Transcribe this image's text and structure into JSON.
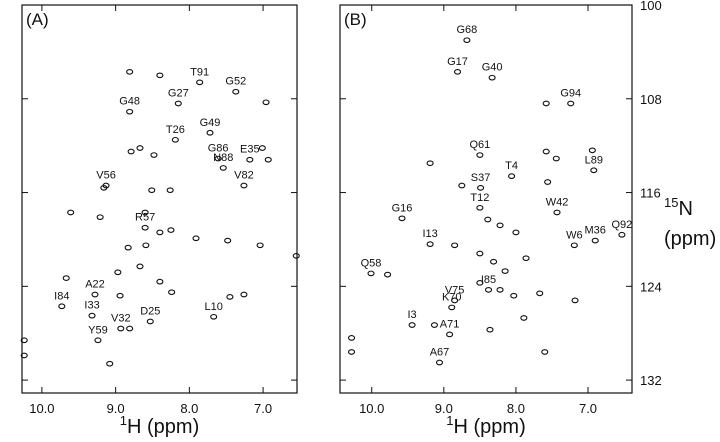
{
  "chart_data": [
    {
      "type": "scatter",
      "panel_label": "(A)",
      "color": "#111111",
      "x_label_isotope": "1",
      "x_label": "H (ppm)",
      "xlim": [
        10.27,
        6.54
      ],
      "ylim": [
        100,
        133.1
      ],
      "xticks": [
        {
          "value": 10,
          "label": "10.0"
        },
        {
          "value": 9,
          "label": "9.0"
        },
        {
          "value": 8,
          "label": "8.0"
        },
        {
          "value": 7,
          "label": "7.0"
        }
      ],
      "x": [
        7.86,
        7.37,
        8.15,
        8.81,
        8.19,
        7.72,
        7.61,
        7.54,
        7.18,
        9.13,
        7.26,
        8.6,
        9.28,
        9.73,
        9.32,
        8.53,
        8.93,
        7.67,
        9.24,
        8.81,
        8.4,
        6.96,
        8.67,
        8.48,
        8.79,
        9.16,
        8.51,
        8.26,
        9.61,
        8.6,
        9.21,
        8.4,
        8.59,
        8.25,
        8.83,
        7.91,
        7.48,
        7.04,
        6.55,
        9.67,
        8.97,
        8.67,
        8.4,
        8.24,
        7.45,
        7.26,
        8.94,
        8.81,
        9.08,
        10.24,
        10.24,
        6.93,
        7.01
      ],
      "values": [
        106.6,
        107.4,
        108.4,
        109.1,
        111.5,
        110.9,
        113.1,
        113.9,
        113.2,
        115.4,
        115.4,
        119.0,
        124.7,
        125.7,
        126.5,
        127.0,
        127.6,
        126.6,
        128.6,
        105.7,
        106.0,
        108.3,
        112.2,
        112.8,
        112.5,
        115.6,
        115.8,
        115.8,
        117.7,
        117.7,
        118.1,
        119.4,
        120.5,
        119.2,
        120.7,
        119.9,
        120.1,
        120.5,
        121.4,
        123.3,
        122.8,
        122.3,
        123.6,
        124.5,
        124.9,
        124.7,
        124.8,
        127.6,
        130.6,
        128.6,
        129.9,
        113.2,
        112.2
      ],
      "labels": [
        "T91",
        "G52",
        "G27",
        "G48",
        "T26",
        "G49",
        "G86",
        "N88",
        "E35",
        "V56",
        "V82",
        "R57",
        "A22",
        "I84",
        "I33",
        "D25",
        "V32",
        "L10",
        "Y59",
        null,
        null,
        null,
        null,
        null,
        null,
        null,
        null,
        null,
        null,
        null,
        null,
        null,
        null,
        null,
        null,
        null,
        null,
        null,
        null,
        null,
        null,
        null,
        null,
        null,
        null,
        null,
        null,
        null,
        null,
        null,
        null,
        null,
        null
      ]
    },
    {
      "type": "scatter",
      "panel_label": "(B)",
      "color": "#111111",
      "x_label_isotope": "1",
      "x_label": "H (ppm)",
      "y_label_isotope": "15",
      "y_label": "N",
      "y_label_unit": "(ppm)",
      "xlim": [
        10.44,
        6.39
      ],
      "ylim": [
        100,
        133.1
      ],
      "xticks": [
        {
          "value": 10,
          "label": "10.0"
        },
        {
          "value": 9,
          "label": "9.0"
        },
        {
          "value": 8,
          "label": "8.0"
        },
        {
          "value": 7,
          "label": "7.0"
        }
      ],
      "yticks": [
        100,
        108,
        116,
        124,
        132
      ],
      "x": [
        8.68,
        8.81,
        8.33,
        7.24,
        8.5,
        8.49,
        8.06,
        8.5,
        6.92,
        9.58,
        7.43,
        6.53,
        9.19,
        7.19,
        6.9,
        10.01,
        8.85,
        8.38,
        8.89,
        9.44,
        8.92,
        9.06,
        7.58,
        7.58,
        7.44,
        6.94,
        9.19,
        8.75,
        7.56,
        8.39,
        8.22,
        8.0,
        8.85,
        8.5,
        8.31,
        8.15,
        7.86,
        8.5,
        8.22,
        8.03,
        7.67,
        7.18,
        7.89,
        9.13,
        8.36,
        7.6,
        10.28,
        10.28,
        9.78
      ],
      "values": [
        103.0,
        105.7,
        106.2,
        108.4,
        112.8,
        115.6,
        114.6,
        117.3,
        114.1,
        118.2,
        117.7,
        119.6,
        120.4,
        120.5,
        120.1,
        122.9,
        125.2,
        124.3,
        125.8,
        127.3,
        128.1,
        130.5,
        108.4,
        112.5,
        113.1,
        112.4,
        113.5,
        115.4,
        115.1,
        118.3,
        118.8,
        119.4,
        120.5,
        121.2,
        121.9,
        122.7,
        121.6,
        123.7,
        124.3,
        124.8,
        124.6,
        125.2,
        126.7,
        127.3,
        127.7,
        129.6,
        128.4,
        129.6,
        123.0
      ],
      "labels": [
        "G68",
        "G17",
        "G40",
        "G94",
        "Q61",
        "S37",
        "T4",
        "T12",
        "L89",
        "G16",
        "W42",
        "Q92",
        "I13",
        "W6",
        "M36",
        "Q58",
        "V75",
        "I85",
        "K70",
        "I3",
        "A71",
        "A67",
        null,
        null,
        null,
        null,
        null,
        null,
        null,
        null,
        null,
        null,
        null,
        null,
        null,
        null,
        null,
        null,
        null,
        null,
        null,
        null,
        null,
        null,
        null,
        null,
        null,
        null,
        null
      ]
    }
  ]
}
